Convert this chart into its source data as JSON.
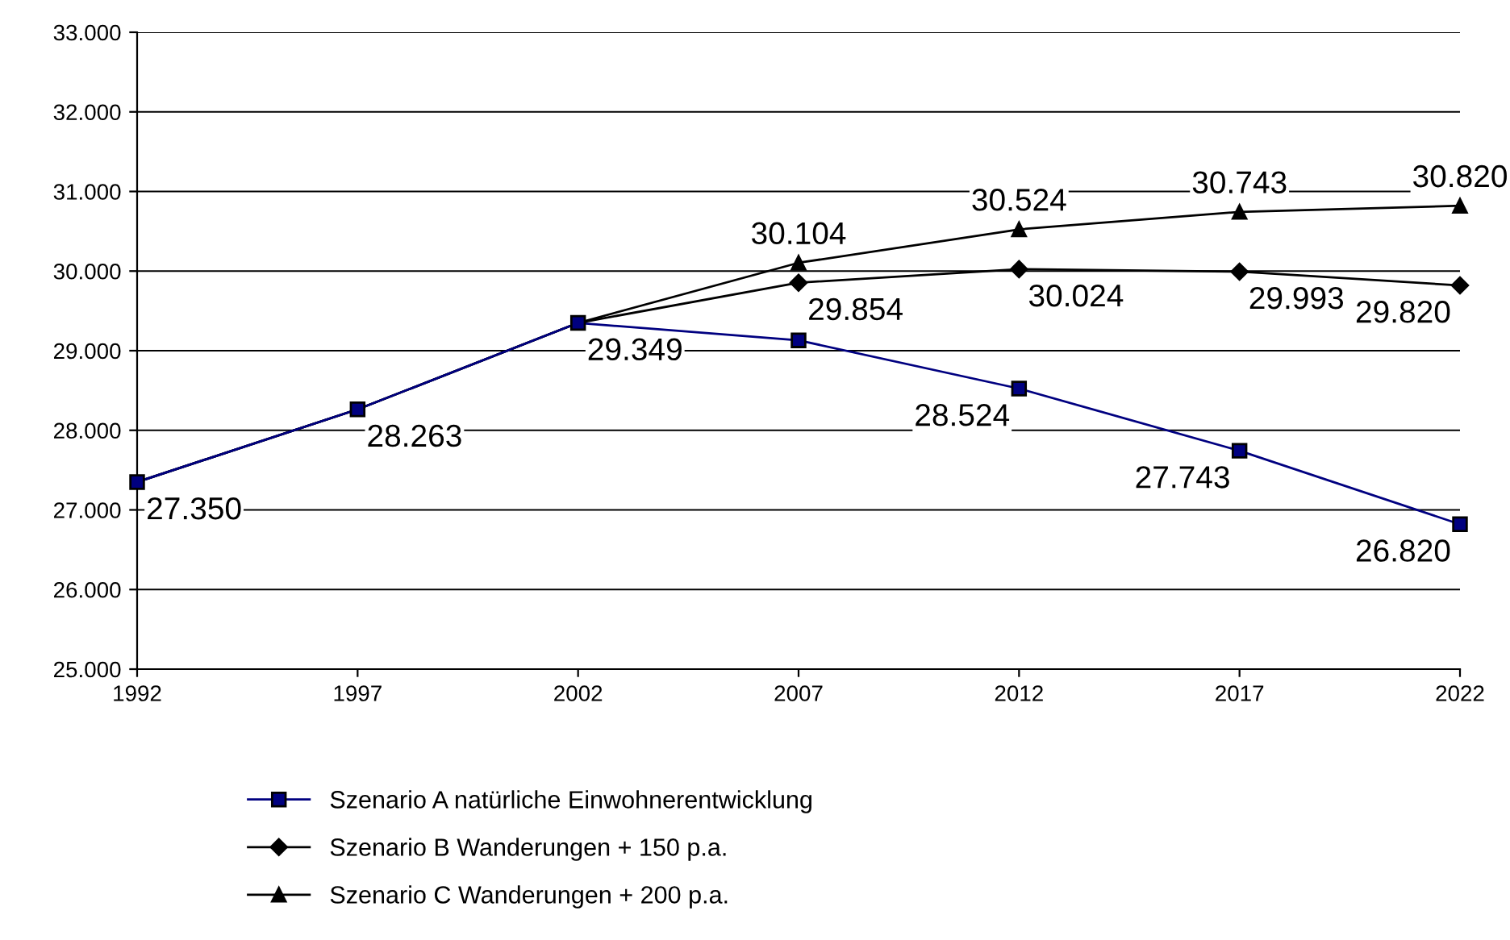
{
  "chart_data": {
    "type": "line",
    "categories": [
      "1992",
      "1997",
      "2002",
      "2007",
      "2012",
      "2017",
      "2022"
    ],
    "series": [
      {
        "name": "Szenario A natürliche Einwohnerentwicklung",
        "color": "#000080",
        "marker": "square",
        "values": [
          27350,
          28263,
          29349,
          29130,
          28524,
          27743,
          26820
        ],
        "value_labels": [
          "27.350",
          "28.263",
          "29.349",
          null,
          "28.524",
          "27.743",
          "26.820"
        ]
      },
      {
        "name": "Szenario B Wanderungen + 150 p.a.",
        "color": "#000000",
        "marker": "diamond",
        "values": [
          27350,
          28263,
          29349,
          29854,
          30024,
          29993,
          29820
        ],
        "value_labels": [
          null,
          null,
          null,
          "29.854",
          "30.024",
          "29.993",
          "29.820"
        ]
      },
      {
        "name": "Szenario C Wanderungen + 200 p.a.",
        "color": "#000000",
        "marker": "triangle",
        "values": [
          27350,
          28263,
          29349,
          30104,
          30524,
          30743,
          30820
        ],
        "value_labels": [
          null,
          null,
          null,
          "30.104",
          "30.524",
          "30.743",
          "30.820"
        ]
      }
    ],
    "ylim": [
      25000,
      33000
    ],
    "yticks": [
      {
        "value": 25000,
        "label": "25.000"
      },
      {
        "value": 26000,
        "label": "26.000"
      },
      {
        "value": 27000,
        "label": "27.000"
      },
      {
        "value": 28000,
        "label": "28.000"
      },
      {
        "value": 29000,
        "label": "29.000"
      },
      {
        "value": 30000,
        "label": "30.000"
      },
      {
        "value": 31000,
        "label": "31.000"
      },
      {
        "value": 32000,
        "label": "32.000"
      },
      {
        "value": 33000,
        "label": "33.000"
      }
    ],
    "grid": "y",
    "legend": "bottom",
    "line_style": "solid"
  }
}
